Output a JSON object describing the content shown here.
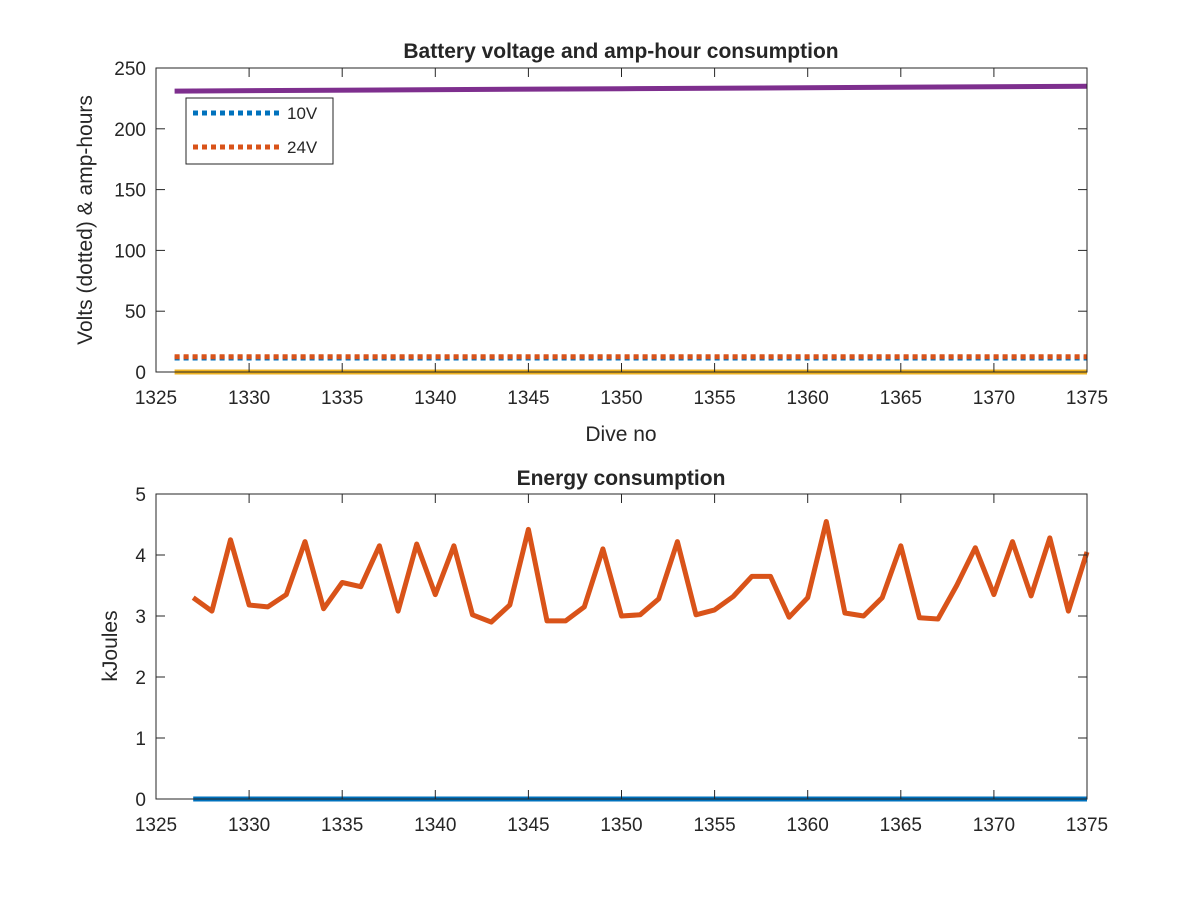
{
  "chart_data": [
    {
      "type": "line",
      "title": "Battery voltage and amp-hour consumption",
      "xlabel": "Dive no",
      "ylabel": "Volts (dotted) & amp-hours",
      "xlim": [
        1326,
        1375
      ],
      "ylim": [
        0,
        250
      ],
      "xticks": [
        1325,
        1330,
        1335,
        1340,
        1345,
        1350,
        1355,
        1360,
        1365,
        1370,
        1375
      ],
      "yticks": [
        0,
        50,
        100,
        150,
        200,
        250
      ],
      "grid": false,
      "legend": {
        "placement": "top-left",
        "entries": [
          "10V",
          "24V"
        ]
      },
      "series": [
        {
          "name": "10V",
          "style": "dotted",
          "color": "#0072BD",
          "x": [
            1326,
            1375
          ],
          "y": [
            11.5,
            11.5
          ]
        },
        {
          "name": "24V",
          "style": "dotted",
          "color": "#D95319",
          "x": [
            1326,
            1375
          ],
          "y": [
            12.5,
            12.5
          ]
        },
        {
          "style": "solid",
          "color": "#EDB120",
          "x": [
            1326,
            1375
          ],
          "y": [
            0,
            0
          ]
        },
        {
          "style": "solid",
          "color": "#7E2F8E",
          "x": [
            1326,
            1350,
            1375
          ],
          "y": [
            231,
            233,
            235
          ]
        }
      ]
    },
    {
      "type": "line",
      "title": "Energy consumption",
      "xlabel": "",
      "ylabel": "kJoules",
      "xlim": [
        1325,
        1375
      ],
      "ylim": [
        0,
        5
      ],
      "xticks": [
        1325,
        1330,
        1335,
        1340,
        1345,
        1350,
        1355,
        1360,
        1365,
        1370,
        1375
      ],
      "yticks": [
        0,
        1,
        2,
        3,
        4,
        5
      ],
      "grid": false,
      "series": [
        {
          "style": "solid",
          "color": "#0072BD",
          "x": [
            1327,
            1375
          ],
          "y": [
            0,
            0
          ]
        },
        {
          "style": "solid",
          "color": "#D95319",
          "x": [
            1327,
            1328,
            1329,
            1330,
            1331,
            1332,
            1333,
            1334,
            1335,
            1336,
            1337,
            1338,
            1339,
            1340,
            1341,
            1342,
            1343,
            1344,
            1345,
            1346,
            1347,
            1348,
            1349,
            1350,
            1351,
            1352,
            1353,
            1354,
            1355,
            1356,
            1357,
            1358,
            1359,
            1360,
            1361,
            1362,
            1363,
            1364,
            1365,
            1366,
            1367,
            1368,
            1369,
            1370,
            1371,
            1372,
            1373,
            1374,
            1375
          ],
          "y": [
            3.3,
            3.08,
            4.25,
            3.18,
            3.15,
            3.35,
            4.22,
            3.12,
            3.55,
            3.48,
            4.15,
            3.08,
            4.18,
            3.35,
            4.15,
            3.02,
            2.9,
            3.18,
            4.42,
            2.92,
            2.92,
            3.15,
            4.1,
            3.0,
            3.02,
            3.28,
            4.22,
            3.02,
            3.1,
            3.32,
            3.65,
            3.65,
            2.98,
            3.3,
            4.55,
            3.05,
            3.0,
            3.3,
            4.15,
            2.97,
            2.95,
            3.5,
            4.12,
            3.35,
            4.22,
            3.33,
            4.28,
            3.08,
            4.05
          ]
        }
      ]
    }
  ]
}
